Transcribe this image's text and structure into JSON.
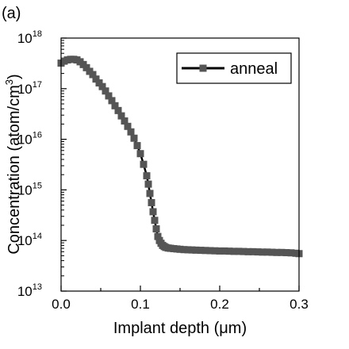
{
  "panel_label": "(a)",
  "chart_data": {
    "type": "line",
    "title": "",
    "xlabel": "Implant depth (μm)",
    "ylabel_main": "Concentration (atom/cm",
    "ylabel_sup": "3",
    "ylabel_end": ")",
    "xlim": [
      0.0,
      0.3
    ],
    "ylim": [
      10000000000000.0,
      1e+18
    ],
    "yscale": "log",
    "grid": false,
    "legend_placement": "top-right",
    "x_ticks": [
      "0.0",
      "0.1",
      "0.2",
      "0.3"
    ],
    "x_tick_values": [
      0.0,
      0.1,
      0.2,
      0.3
    ],
    "y_ticks": [
      {
        "base": "10",
        "exp": "13"
      },
      {
        "base": "10",
        "exp": "14"
      },
      {
        "base": "10",
        "exp": "15"
      },
      {
        "base": "10",
        "exp": "16"
      },
      {
        "base": "10",
        "exp": "17"
      },
      {
        "base": "10",
        "exp": "18"
      }
    ],
    "y_tick_exponents": [
      13,
      14,
      15,
      16,
      17,
      18
    ],
    "series": [
      {
        "name": "anneal",
        "color": "#555555",
        "line_color": "#000000",
        "marker": "square",
        "x": [
          0.0,
          0.004,
          0.008,
          0.012,
          0.016,
          0.02,
          0.024,
          0.028,
          0.032,
          0.036,
          0.04,
          0.044,
          0.048,
          0.052,
          0.056,
          0.06,
          0.064,
          0.068,
          0.072,
          0.076,
          0.08,
          0.084,
          0.088,
          0.092,
          0.096,
          0.1,
          0.104,
          0.108,
          0.11,
          0.112,
          0.114,
          0.116,
          0.118,
          0.12,
          0.122,
          0.124,
          0.126,
          0.128,
          0.13,
          0.132,
          0.135,
          0.138,
          0.142,
          0.146,
          0.15,
          0.155,
          0.16,
          0.165,
          0.17,
          0.176,
          0.182,
          0.188,
          0.194,
          0.2,
          0.206,
          0.212,
          0.218,
          0.224,
          0.23,
          0.236,
          0.242,
          0.248,
          0.254,
          0.26,
          0.266,
          0.272,
          0.278,
          0.284,
          0.29,
          0.296,
          0.3
        ],
        "y": [
          3.2e+17,
          3.5e+17,
          3.7e+17,
          3.8e+17,
          3.8e+17,
          3.7e+17,
          3.4e+17,
          3e+17,
          2.6e+17,
          2.2e+17,
          1.9e+17,
          1.55e+17,
          1.3e+17,
          1.1e+17,
          9e+16,
          7.2e+16,
          5.8e+16,
          4.6e+16,
          3.7e+16,
          2.9e+16,
          2.3e+16,
          1.8e+16,
          1.4e+16,
          1.05e+16,
          7500000000000000.0,
          5200000000000000.0,
          3200000000000000.0,
          1900000000000000.0,
          1300000000000000.0,
          850000000000000.0,
          560000000000000.0,
          370000000000000.0,
          250000000000000.0,
          170000000000000.0,
          120000000000000.0,
          100000000000000.0,
          88000000000000.0,
          80000000000000.0,
          76000000000000.0,
          73000000000000.0,
          71000000000000.0,
          70000000000000.0,
          69000000000000.0,
          68000000000000.0,
          67000000000000.0,
          66000000000000.0,
          65500000000000.0,
          65000000000000.0,
          64500000000000.0,
          64000000000000.0,
          63500000000000.0,
          63000000000000.0,
          62500000000000.0,
          62000000000000.0,
          62000000000000.0,
          61500000000000.0,
          61000000000000.0,
          61000000000000.0,
          60500000000000.0,
          60000000000000.0,
          60000000000000.0,
          59500000000000.0,
          59000000000000.0,
          59000000000000.0,
          58500000000000.0,
          58000000000000.0,
          58000000000000.0,
          57500000000000.0,
          57000000000000.0,
          56000000000000.0,
          55000000000000.0
        ]
      }
    ]
  }
}
